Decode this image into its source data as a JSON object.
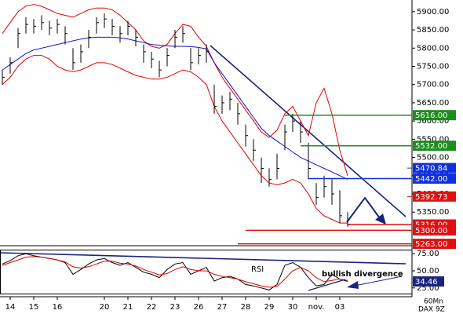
{
  "chart_data": [
    {
      "type": "ohlc",
      "x": [
        0,
        1,
        2,
        3,
        4,
        5,
        6,
        7,
        8,
        9,
        10,
        11,
        12,
        13,
        14,
        15,
        16,
        17,
        18,
        19,
        20,
        21,
        22,
        23,
        24,
        25,
        26,
        27,
        28,
        29,
        30,
        31,
        32,
        33,
        34,
        35,
        36,
        37,
        38,
        39,
        40,
        41,
        42,
        43,
        44
      ],
      "high": [
        5740,
        5775,
        5855,
        5885,
        5880,
        5890,
        5875,
        5880,
        5860,
        5800,
        5810,
        5850,
        5885,
        5895,
        5880,
        5860,
        5875,
        5850,
        5810,
        5790,
        5765,
        5800,
        5850,
        5860,
        5800,
        5800,
        5810,
        5700,
        5670,
        5680,
        5650,
        5590,
        5550,
        5500,
        5470,
        5510,
        5590,
        5620,
        5600,
        5540,
        5430,
        5450,
        5440,
        5410,
        5350
      ],
      "low": [
        5700,
        5730,
        5800,
        5840,
        5840,
        5850,
        5835,
        5840,
        5810,
        5740,
        5760,
        5800,
        5840,
        5855,
        5835,
        5815,
        5835,
        5805,
        5760,
        5745,
        5720,
        5750,
        5800,
        5815,
        5740,
        5755,
        5760,
        5620,
        5620,
        5630,
        5590,
        5530,
        5490,
        5430,
        5420,
        5440,
        5520,
        5570,
        5540,
        5440,
        5370,
        5390,
        5370,
        5320,
        5310
      ],
      "close": [
        5720,
        5760,
        5840,
        5865,
        5860,
        5870,
        5855,
        5865,
        5840,
        5760,
        5790,
        5830,
        5870,
        5880,
        5860,
        5840,
        5860,
        5830,
        5790,
        5770,
        5740,
        5780,
        5830,
        5840,
        5760,
        5780,
        5790,
        5640,
        5650,
        5660,
        5620,
        5560,
        5520,
        5470,
        5440,
        5470,
        5570,
        5600,
        5570,
        5470,
        5390,
        5420,
        5400,
        5340,
        5315
      ],
      "color": "#000000",
      "series": [
        {
          "color": "#e00000",
          "values": [
            5840,
            5870,
            5900,
            5915,
            5920,
            5915,
            5905,
            5895,
            5890,
            5885,
            5895,
            5905,
            5910,
            5910,
            5905,
            5890,
            5870,
            5850,
            5820,
            5805,
            5800,
            5810,
            5840,
            5865,
            5860,
            5830,
            5805,
            5760,
            5720,
            5690,
            5660,
            5630,
            5600,
            5570,
            5555,
            5575,
            5620,
            5640,
            5600,
            5560,
            5650,
            5690,
            5620,
            5520,
            5450
          ]
        },
        {
          "color": "#e00000",
          "values": [
            5700,
            5720,
            5750,
            5770,
            5780,
            5780,
            5770,
            5750,
            5740,
            5735,
            5740,
            5750,
            5760,
            5760,
            5755,
            5745,
            5735,
            5725,
            5720,
            5715,
            5715,
            5720,
            5730,
            5740,
            5735,
            5720,
            5700,
            5640,
            5600,
            5570,
            5540,
            5510,
            5480,
            5450,
            5430,
            5425,
            5430,
            5440,
            5430,
            5400,
            5360,
            5340,
            5330,
            5320,
            5320
          ]
        },
        {
          "color": "#1010c8",
          "values": [
            5740,
            5755,
            5770,
            5785,
            5795,
            5800,
            5805,
            5810,
            5815,
            5820,
            5825,
            5828,
            5830,
            5830,
            5830,
            5828,
            5825,
            5820,
            5815,
            5810,
            5808,
            5806,
            5805,
            5805,
            5804,
            5802,
            5798,
            5760,
            5730,
            5700,
            5670,
            5640,
            5610,
            5580,
            5560,
            5545,
            5530,
            5515,
            5500,
            5490,
            5480,
            5470,
            5460,
            5450,
            5440
          ]
        }
      ],
      "levels": [
        {
          "value": 5616,
          "label": "5616.00",
          "color": "#1e8c1e",
          "from": 36
        },
        {
          "value": 5532,
          "label": "5532.00",
          "color": "#1e8c1e",
          "from": 38
        },
        {
          "value": 5470.84,
          "label": "5470.84",
          "color": "#1030e0"
        },
        {
          "value": 5442,
          "label": "5442.00",
          "color": "#1030e0",
          "from": 39
        },
        {
          "value": 5392.73,
          "label": "5392.73",
          "color": "#e01010"
        },
        {
          "value": 5316,
          "label": "5316.00",
          "color": "#e01010",
          "from": 44
        },
        {
          "value": 5300,
          "label": "5300.00",
          "color": "#e01010",
          "from": 31
        },
        {
          "value": 5263,
          "label": "5263.00",
          "color": "#e01010",
          "from": 30
        }
      ],
      "xlim": [
        -0.3,
        52.2
      ],
      "ylim": [
        5260,
        5932
      ],
      "yticks": [
        {
          "value": 5900,
          "label": "5900.00"
        },
        {
          "value": 5850,
          "label": "5850.00"
        },
        {
          "value": 5800,
          "label": "5800.00"
        },
        {
          "value": 5750,
          "label": "5750.00"
        },
        {
          "value": 5700,
          "label": "5700.00"
        },
        {
          "value": 5650,
          "label": "5650.00"
        },
        {
          "value": 5600,
          "label": "5600.00"
        },
        {
          "value": 5550,
          "label": "5550.00"
        },
        {
          "value": 5500,
          "label": "5500.00"
        },
        {
          "value": 5450,
          "label": "5450.00"
        },
        {
          "value": 5400,
          "label": "5400.00"
        },
        {
          "value": 5350,
          "label": "5350.00"
        }
      ]
    },
    {
      "type": "line",
      "label": "RSI",
      "annotation": "bullish divergence",
      "series": [
        {
          "color": "#000000",
          "values": [
            60,
            65,
            72,
            75,
            72,
            70,
            68,
            66,
            62,
            45,
            52,
            60,
            66,
            68,
            62,
            58,
            62,
            55,
            48,
            45,
            40,
            52,
            60,
            62,
            45,
            50,
            55,
            35,
            40,
            42,
            38,
            30,
            28,
            25,
            22,
            30,
            58,
            62,
            55,
            40,
            28,
            30,
            45,
            38,
            34.46
          ]
        },
        {
          "color": "#e00000",
          "values": [
            58,
            62,
            66,
            70,
            71,
            70,
            68,
            66,
            63,
            56,
            54,
            56,
            60,
            64,
            64,
            61,
            60,
            57,
            52,
            48,
            44,
            46,
            52,
            56,
            52,
            50,
            50,
            45,
            42,
            40,
            38,
            34,
            31,
            28,
            26,
            27,
            38,
            50,
            55,
            50,
            40,
            34,
            36,
            38,
            36
          ]
        }
      ],
      "xlim": [
        -0.3,
        52.2
      ],
      "ylim": [
        19,
        81
      ],
      "yticks": [
        {
          "value": 75,
          "label": "75.00"
        },
        {
          "value": 50,
          "label": "50.00"
        },
        {
          "value": 25,
          "label": "25.00"
        }
      ],
      "xticks": [
        {
          "value": 1,
          "label": "14"
        },
        {
          "value": 4,
          "label": "15"
        },
        {
          "value": 7,
          "label": "16"
        },
        {
          "value": 13,
          "label": "20"
        },
        {
          "value": 16,
          "label": "21"
        },
        {
          "value": 19,
          "label": "22"
        },
        {
          "value": 22,
          "label": "23"
        },
        {
          "value": 25,
          "label": "26"
        },
        {
          "value": 28,
          "label": "27"
        },
        {
          "value": 31,
          "label": "28"
        },
        {
          "value": 34,
          "label": "29"
        },
        {
          "value": 37,
          "label": "30"
        },
        {
          "value": 40,
          "label": "nov."
        },
        {
          "value": 43,
          "label": "03"
        }
      ],
      "footer": [
        "60Mn",
        "DAX 9Z"
      ]
    }
  ]
}
